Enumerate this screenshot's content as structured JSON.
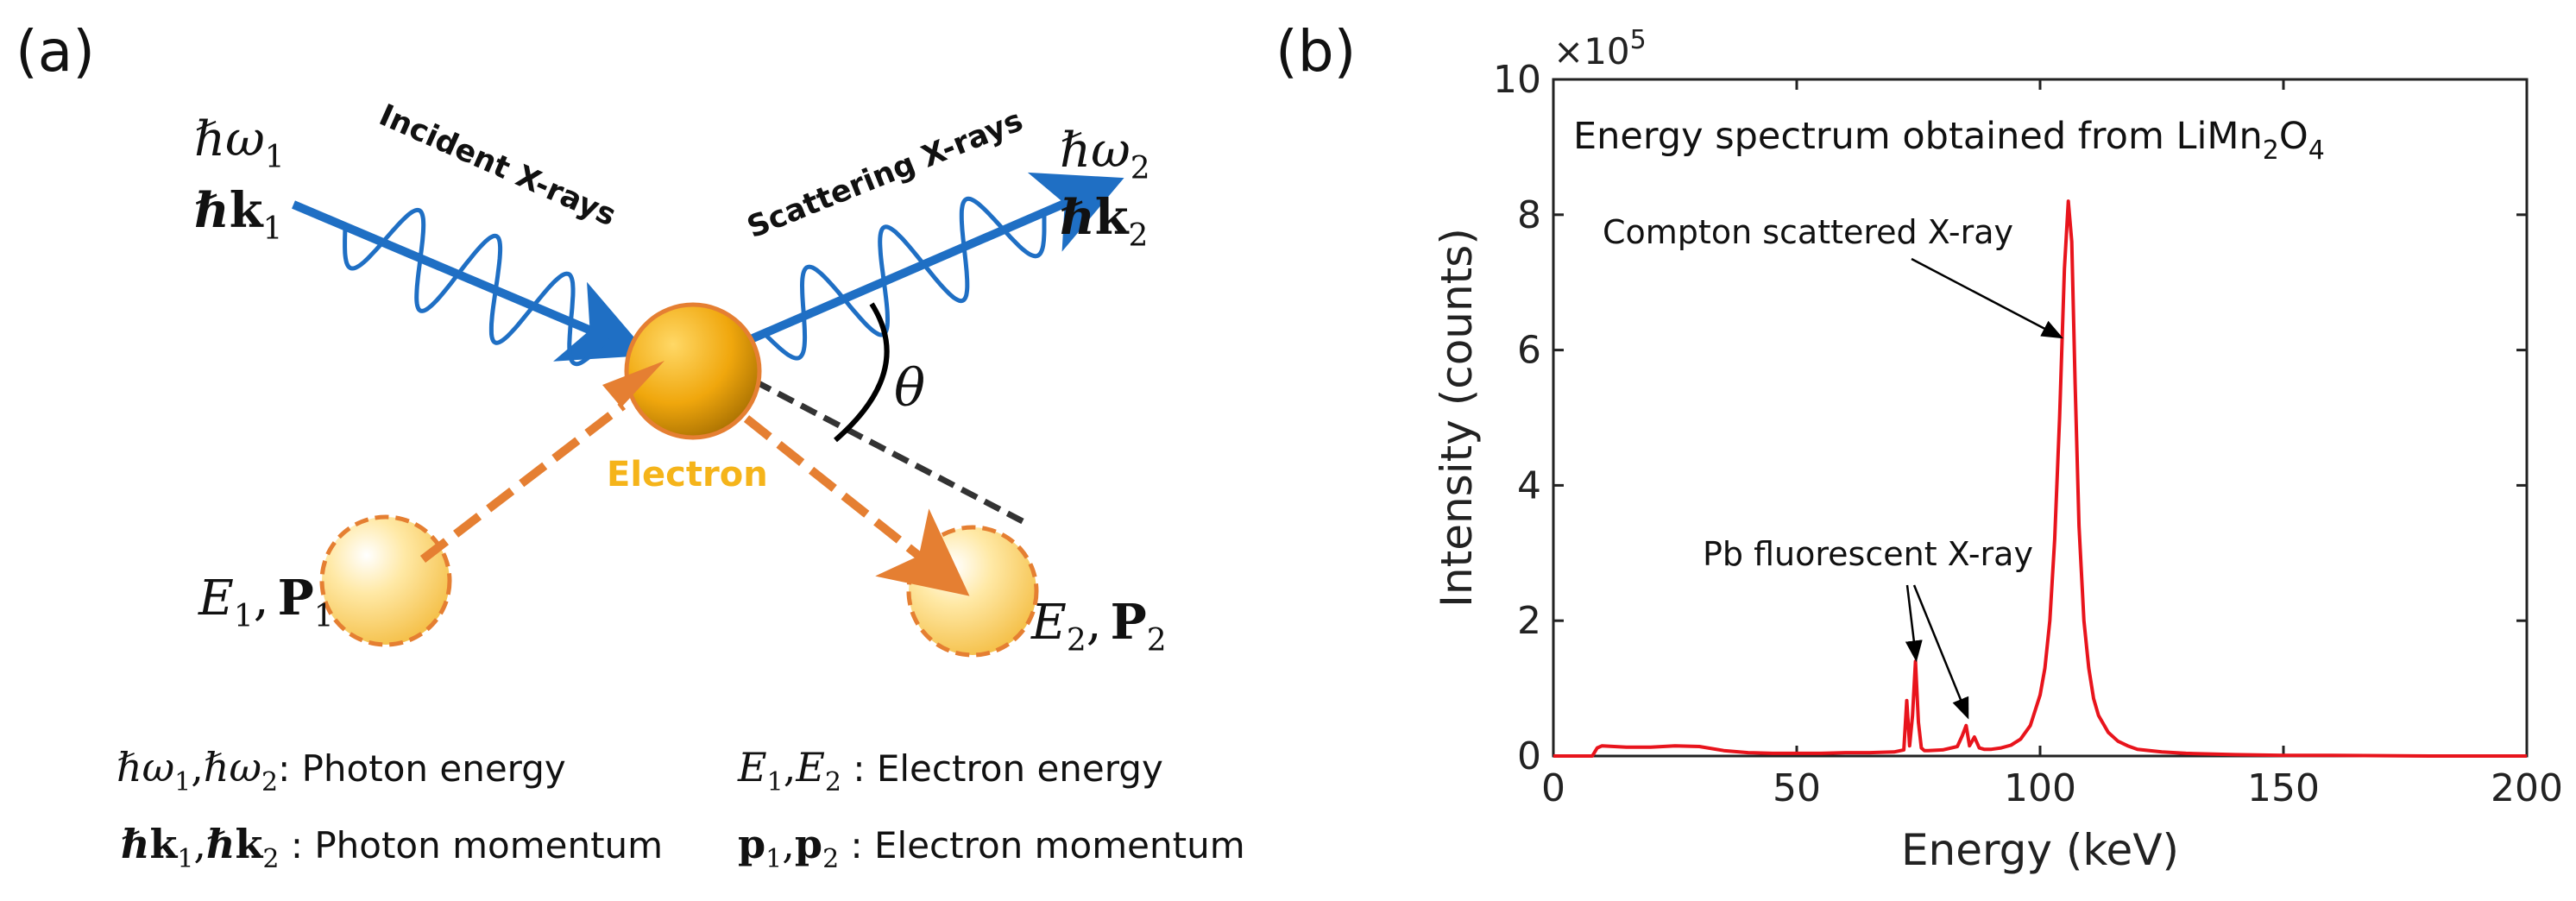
{
  "panel_a": {
    "label": "(a)",
    "incident_label": "Incident X-rays",
    "scattering_label": "Scattering X-rays",
    "electron_label": "Electron",
    "theta": "θ",
    "photon1_energy": {
      "base": "ℏω",
      "sub": "1"
    },
    "photon1_momentum": {
      "base": "ℏk",
      "sub": "1"
    },
    "photon2_energy": {
      "base": "ℏω",
      "sub": "2"
    },
    "photon2_momentum": {
      "base": "ℏk",
      "sub": "2"
    },
    "electron_state1": {
      "e": "E",
      "e_sub": "1",
      "sep": ",",
      "p": "P",
      "p_sub": "1"
    },
    "electron_state2": {
      "e": "E",
      "e_sub": "2",
      "sep": ",",
      "p": "P",
      "p_sub": "2"
    },
    "legend": {
      "photon_energy": {
        "sym1": "ℏω",
        "sub1": "1",
        "sep": ",",
        "sym2": "ℏω",
        "sub2": "2",
        "desc": ": Photon energy"
      },
      "photon_momentum": {
        "sym1": "ℏk",
        "sub1": "1",
        "sep": ",",
        "sym2": "ℏk",
        "sub2": "2",
        "desc": " : Photon momentum"
      },
      "electron_energy": {
        "sym1": "E",
        "sub1": "1",
        "sep": ",",
        "sym2": "E",
        "sub2": "2",
        "desc": " : Electron energy"
      },
      "electron_momentum": {
        "sym1": "p",
        "sub1": "1",
        "sep": ",",
        "sym2": "p",
        "sub2": "2",
        "desc": " : Electron momentum"
      }
    },
    "colors": {
      "photon": "#1f6fc4",
      "electron": "#f5b41a",
      "arrow": "#e57f32"
    }
  },
  "panel_b": {
    "label": "(b)"
  },
  "chart_data": {
    "type": "line",
    "title": "Energy spectrum obtained from LiMn",
    "title_sub": "2",
    "title_mid": "O",
    "title_sub2": "4",
    "xlabel": "Energy (keV)",
    "ylabel": "Intensity (counts)",
    "xlim": [
      0,
      200
    ],
    "ylim": [
      0,
      10
    ],
    "y_multiplier": "×10",
    "y_multiplier_exp": "5",
    "xticks": [
      0,
      50,
      100,
      150,
      200
    ],
    "yticks": [
      0,
      2,
      4,
      6,
      8,
      10
    ],
    "grid": false,
    "line_color": "#e8141c",
    "series": [
      {
        "name": "LiMn2O4 spectrum",
        "x": [
          0,
          8,
          9,
          10,
          15,
          20,
          25,
          30,
          35,
          40,
          45,
          50,
          55,
          60,
          65,
          70,
          72,
          72.6,
          73.2,
          73.8,
          74.4,
          75.0,
          75.6,
          76.2,
          77,
          80,
          83,
          84,
          84.8,
          85.5,
          86.5,
          87.5,
          88.5,
          90,
          92,
          94,
          96,
          98,
          100,
          101,
          102,
          103,
          104,
          105,
          105.8,
          106.5,
          107.2,
          108,
          109,
          110,
          111,
          112,
          114,
          116,
          118,
          120,
          125,
          130,
          140,
          150,
          160,
          180,
          200
        ],
        "y": [
          0,
          0,
          0.12,
          0.15,
          0.13,
          0.13,
          0.15,
          0.14,
          0.08,
          0.05,
          0.04,
          0.04,
          0.04,
          0.05,
          0.05,
          0.06,
          0.09,
          0.82,
          0.15,
          0.6,
          1.4,
          0.5,
          0.12,
          0.08,
          0.08,
          0.09,
          0.14,
          0.3,
          0.45,
          0.15,
          0.28,
          0.12,
          0.1,
          0.1,
          0.12,
          0.16,
          0.25,
          0.45,
          0.9,
          1.3,
          2.0,
          3.2,
          5.0,
          7.2,
          8.2,
          7.6,
          5.5,
          3.4,
          2.0,
          1.3,
          0.85,
          0.6,
          0.35,
          0.22,
          0.15,
          0.1,
          0.06,
          0.04,
          0.02,
          0.01,
          0.01,
          0.0,
          0.0
        ]
      }
    ],
    "annotations": [
      {
        "text": "Compton scattered X-ray",
        "target": [
          104,
          6.2
        ]
      },
      {
        "text": "Pb fluorescent X-ray",
        "target_1": [
          74.5,
          1.45
        ],
        "target_2": [
          85,
          0.6
        ]
      }
    ]
  }
}
